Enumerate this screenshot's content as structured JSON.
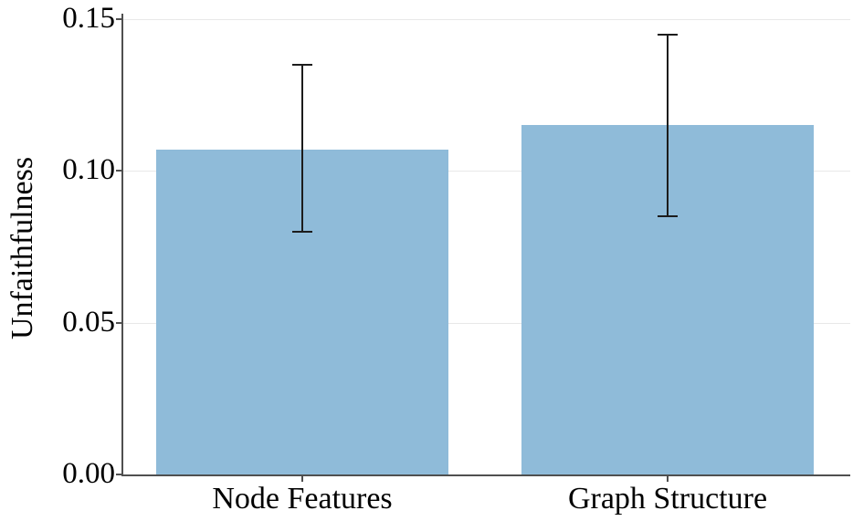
{
  "figure": {
    "background": "#ffffff"
  },
  "chart_data": {
    "type": "bar",
    "title": "",
    "xlabel": "",
    "ylabel": "Unfaithfulness",
    "categories": [
      "Node Features",
      "Graph Structure"
    ],
    "values": [
      0.107,
      0.115
    ],
    "error_bars": {
      "low": [
        0.08,
        0.085
      ],
      "high": [
        0.135,
        0.145
      ]
    },
    "ylim": [
      0,
      0.152
    ],
    "yticks": [
      0,
      0.05,
      0.1,
      0.15
    ],
    "ytick_labels": [
      "0.00",
      "0.05",
      "0.10",
      "0.15"
    ],
    "grid": "horizontal",
    "legend": "none",
    "colors": {
      "bar_fill": "#8fbbd9",
      "error_bar": "#1c1c1c",
      "gridline": "#e8e8e8",
      "spine": "#4f4f4f",
      "text": "#000000"
    }
  }
}
